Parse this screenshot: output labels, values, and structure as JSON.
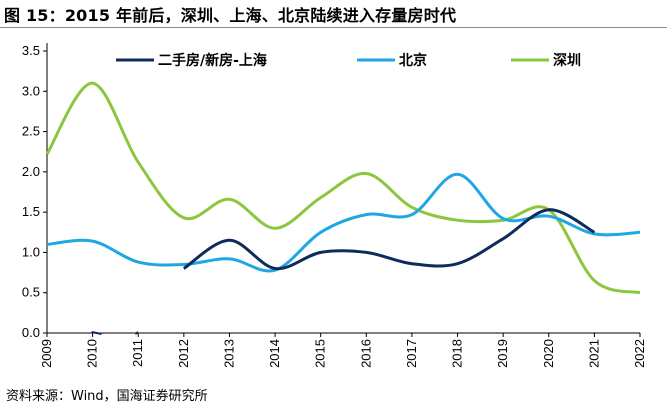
{
  "figure": {
    "title": "图 15：2015 年前后，深圳、上海、北京陆续进入存量房时代",
    "source": "资料来源：Wind，国海证券研究所"
  },
  "chart_data": {
    "type": "line",
    "title": "图 15：2015 年前后，深圳、上海、北京陆续进入存量房时代",
    "xlabel": "",
    "ylabel": "",
    "categories": [
      "2009",
      "2010",
      "2011",
      "2012",
      "2013",
      "2014",
      "2015",
      "2016",
      "2017",
      "2018",
      "2019",
      "2020",
      "2021",
      "2022"
    ],
    "x": [
      2009,
      2010,
      2011,
      2012,
      2013,
      2014,
      2015,
      2016,
      2017,
      2018,
      2019,
      2020,
      2021,
      2022
    ],
    "ylim": [
      0,
      3.5
    ],
    "yticks": [
      "0.0",
      "0.5",
      "1.0",
      "1.5",
      "2.0",
      "2.5",
      "3.0",
      "3.5"
    ],
    "grid": false,
    "legend_position": "top",
    "series": [
      {
        "name": "二手房/新房-上海",
        "color": "#0d2b5c",
        "values": [
          null,
          0.0,
          0.0,
          0.8,
          1.15,
          0.8,
          1.0,
          1.0,
          0.86,
          0.86,
          1.17,
          1.53,
          1.25,
          null
        ]
      },
      {
        "name": "北京",
        "color": "#1ea7e4",
        "values": [
          1.1,
          1.14,
          0.88,
          0.85,
          0.92,
          0.78,
          1.25,
          1.47,
          1.47,
          1.97,
          1.42,
          1.45,
          1.23,
          1.25
        ]
      },
      {
        "name": "深圳",
        "color": "#8cc63e",
        "values": [
          2.22,
          3.1,
          2.12,
          1.43,
          1.66,
          1.3,
          1.68,
          1.98,
          1.56,
          1.4,
          1.4,
          1.53,
          0.65,
          0.5
        ]
      }
    ]
  }
}
